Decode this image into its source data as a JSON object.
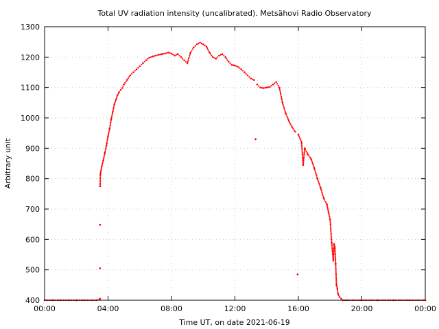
{
  "chart_data": {
    "type": "scatter",
    "title": "Total UV radiation intensity (uncalibrated). Metsähovi Radio Observatory",
    "xlabel": "Time UT, on date 2021-06-19",
    "ylabel": "Arbitrary unit",
    "xlim": [
      0,
      24
    ],
    "ylim": [
      400,
      1300
    ],
    "x_ticks": [
      {
        "value": 0,
        "label": "00:00"
      },
      {
        "value": 4,
        "label": "04:00"
      },
      {
        "value": 8,
        "label": "08:00"
      },
      {
        "value": 12,
        "label": "12:00"
      },
      {
        "value": 16,
        "label": "16:00"
      },
      {
        "value": 20,
        "label": "20:00"
      },
      {
        "value": 24,
        "label": "00:00"
      }
    ],
    "y_ticks": [
      400,
      500,
      600,
      700,
      800,
      900,
      1000,
      1100,
      1200,
      1300
    ],
    "grid": true,
    "legend": "none",
    "point_color": "#ff0000",
    "series": [
      {
        "x": [
          0.0,
          0.5,
          1.0,
          1.5,
          2.0,
          2.5,
          3.0,
          3.25,
          3.45,
          3.5,
          3.5,
          3.5,
          3.5,
          3.52,
          3.55,
          3.6,
          3.7,
          3.8,
          3.9,
          4.0,
          4.1,
          4.2,
          4.3,
          4.4,
          4.5,
          4.6,
          4.7,
          4.8,
          4.9,
          5.0,
          5.2,
          5.4,
          5.6,
          5.8,
          6.0,
          6.2,
          6.4,
          6.6,
          6.8,
          7.0,
          7.2,
          7.4,
          7.6,
          7.8,
          8.0,
          8.2,
          8.4,
          8.6,
          8.8,
          9.0,
          9.2,
          9.4,
          9.6,
          9.8,
          10.0,
          10.2,
          10.4,
          10.6,
          10.8,
          11.0,
          11.2,
          11.4,
          11.6,
          11.8,
          12.0,
          12.2,
          12.4,
          12.6,
          12.8,
          13.0,
          13.2,
          13.3,
          13.4,
          13.6,
          13.8,
          14.0,
          14.2,
          14.4,
          14.6,
          14.8,
          15.0,
          15.2,
          15.4,
          15.6,
          15.8,
          15.95,
          16.0,
          16.2,
          16.3,
          16.4,
          16.6,
          16.8,
          17.0,
          17.2,
          17.4,
          17.6,
          17.8,
          17.9,
          18.0,
          18.1,
          18.2,
          18.25,
          18.3,
          18.35,
          18.4,
          18.45,
          18.5,
          18.6,
          18.7,
          18.8,
          19.0,
          20.0,
          21.0,
          22.0,
          23.0,
          24.0
        ],
        "y": [
          400,
          400,
          400,
          400,
          400,
          400,
          400,
          400,
          402,
          405,
          505,
          648,
          775,
          815,
          825,
          840,
          860,
          885,
          910,
          940,
          965,
          995,
          1020,
          1045,
          1060,
          1075,
          1085,
          1092,
          1098,
          1110,
          1125,
          1140,
          1150,
          1160,
          1170,
          1180,
          1190,
          1198,
          1202,
          1205,
          1208,
          1210,
          1212,
          1215,
          1212,
          1205,
          1210,
          1200,
          1190,
          1180,
          1215,
          1232,
          1242,
          1248,
          1242,
          1235,
          1215,
          1200,
          1195,
          1205,
          1210,
          1200,
          1185,
          1175,
          1172,
          1168,
          1160,
          1150,
          1140,
          1130,
          1125,
          930,
          1110,
          1100,
          1098,
          1100,
          1102,
          1110,
          1118,
          1100,
          1050,
          1015,
          990,
          970,
          955,
          485,
          945,
          920,
          845,
          900,
          880,
          865,
          835,
          800,
          770,
          735,
          715,
          690,
          665,
          590,
          530,
          585,
          575,
          520,
          450,
          440,
          420,
          410,
          405,
          400,
          400,
          400,
          400,
          400,
          400,
          400
        ]
      }
    ]
  }
}
